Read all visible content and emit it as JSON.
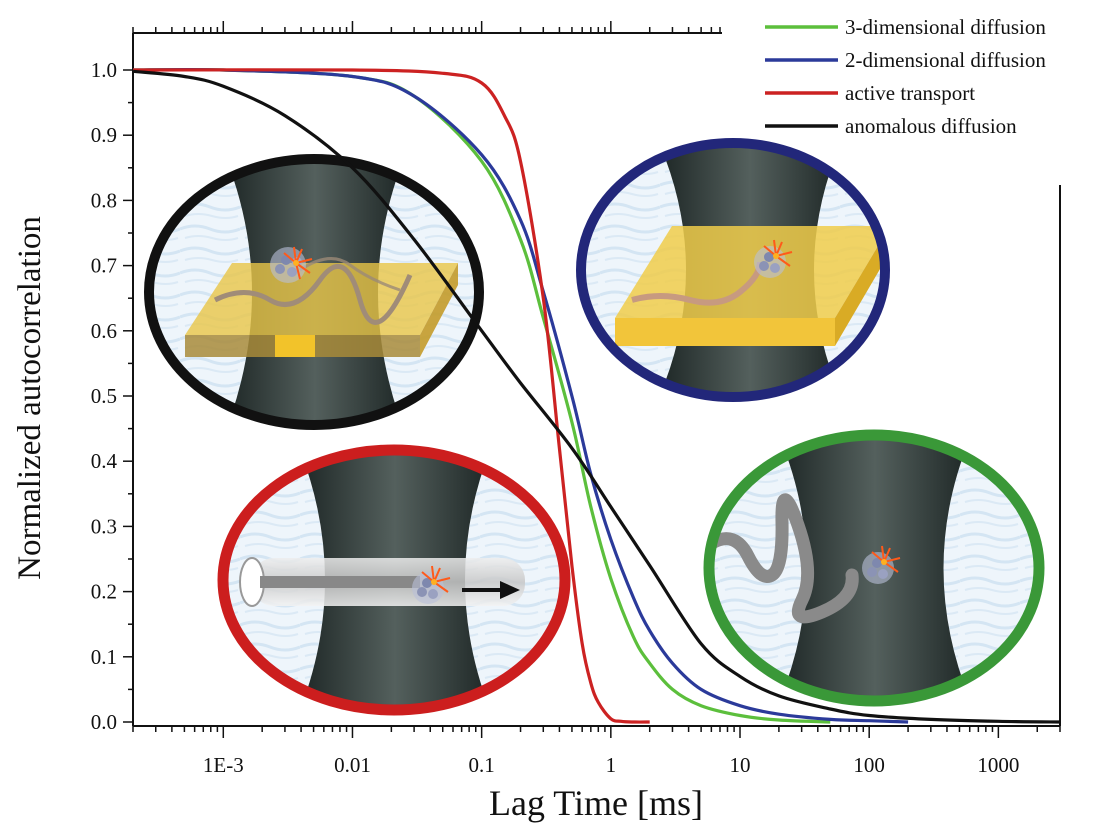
{
  "chart_data": {
    "type": "line",
    "title": "",
    "xlabel": "Lag Time [ms]",
    "ylabel": "Normalized autocorrelation",
    "x_scale": "log",
    "xlim": [
      0.0002,
      3000
    ],
    "ylim": [
      0.0,
      1.0
    ],
    "x_ticks": [
      {
        "value": 0.001,
        "label": "1E-3"
      },
      {
        "value": 0.01,
        "label": "0.01"
      },
      {
        "value": 0.1,
        "label": "0.1"
      },
      {
        "value": 1,
        "label": "1"
      },
      {
        "value": 10,
        "label": "10"
      },
      {
        "value": 100,
        "label": "100"
      },
      {
        "value": 1000,
        "label": "1000"
      }
    ],
    "y_ticks": [
      {
        "value": 0.0,
        "label": "0.0"
      },
      {
        "value": 0.1,
        "label": "0.1"
      },
      {
        "value": 0.2,
        "label": "0.2"
      },
      {
        "value": 0.3,
        "label": "0.3"
      },
      {
        "value": 0.4,
        "label": "0.4"
      },
      {
        "value": 0.5,
        "label": "0.5"
      },
      {
        "value": 0.6,
        "label": "0.6"
      },
      {
        "value": 0.7,
        "label": "0.7"
      },
      {
        "value": 0.8,
        "label": "0.8"
      },
      {
        "value": 0.9,
        "label": "0.9"
      },
      {
        "value": 1.0,
        "label": "1.0"
      }
    ],
    "legend_position": "top-right",
    "grid": false,
    "series": [
      {
        "name": "3-dimensional diffusion",
        "color": "#5cbf3c",
        "x": [
          0.0002,
          0.001,
          0.01,
          0.03,
          0.1,
          0.2,
          0.3,
          0.5,
          0.7,
          1,
          1.5,
          2,
          3,
          5,
          10,
          20,
          50
        ],
        "y": [
          1.0,
          1.0,
          0.99,
          0.96,
          0.86,
          0.74,
          0.62,
          0.46,
          0.33,
          0.22,
          0.13,
          0.09,
          0.05,
          0.025,
          0.01,
          0.003,
          0.0
        ]
      },
      {
        "name": "2-dimensional diffusion",
        "color": "#2b3a9a",
        "x": [
          0.0002,
          0.001,
          0.01,
          0.03,
          0.1,
          0.2,
          0.3,
          0.5,
          0.7,
          1,
          1.5,
          2,
          3,
          5,
          10,
          20,
          50,
          100,
          200
        ],
        "y": [
          1.0,
          1.0,
          0.99,
          0.96,
          0.87,
          0.77,
          0.66,
          0.5,
          0.38,
          0.28,
          0.19,
          0.14,
          0.09,
          0.05,
          0.025,
          0.012,
          0.004,
          0.002,
          0.0
        ]
      },
      {
        "name": "active transport",
        "color": "#cc2222",
        "x": [
          0.0002,
          0.01,
          0.05,
          0.1,
          0.15,
          0.2,
          0.3,
          0.4,
          0.5,
          0.6,
          0.7,
          0.8,
          1,
          1.2,
          1.5,
          2
        ],
        "y": [
          1.0,
          1.0,
          0.995,
          0.98,
          0.93,
          0.86,
          0.65,
          0.42,
          0.24,
          0.12,
          0.06,
          0.03,
          0.005,
          0.001,
          0.0,
          0.0
        ]
      },
      {
        "name": "anomalous diffusion",
        "color": "#111111",
        "x": [
          0.0002,
          0.0005,
          0.001,
          0.003,
          0.01,
          0.03,
          0.1,
          0.2,
          0.5,
          1,
          2,
          5,
          10,
          20,
          50,
          100,
          300,
          1000,
          3000
        ],
        "y": [
          0.998,
          0.99,
          0.975,
          0.93,
          0.85,
          0.74,
          0.6,
          0.52,
          0.42,
          0.33,
          0.24,
          0.12,
          0.07,
          0.04,
          0.02,
          0.01,
          0.004,
          0.001,
          0.0
        ]
      }
    ]
  }
}
